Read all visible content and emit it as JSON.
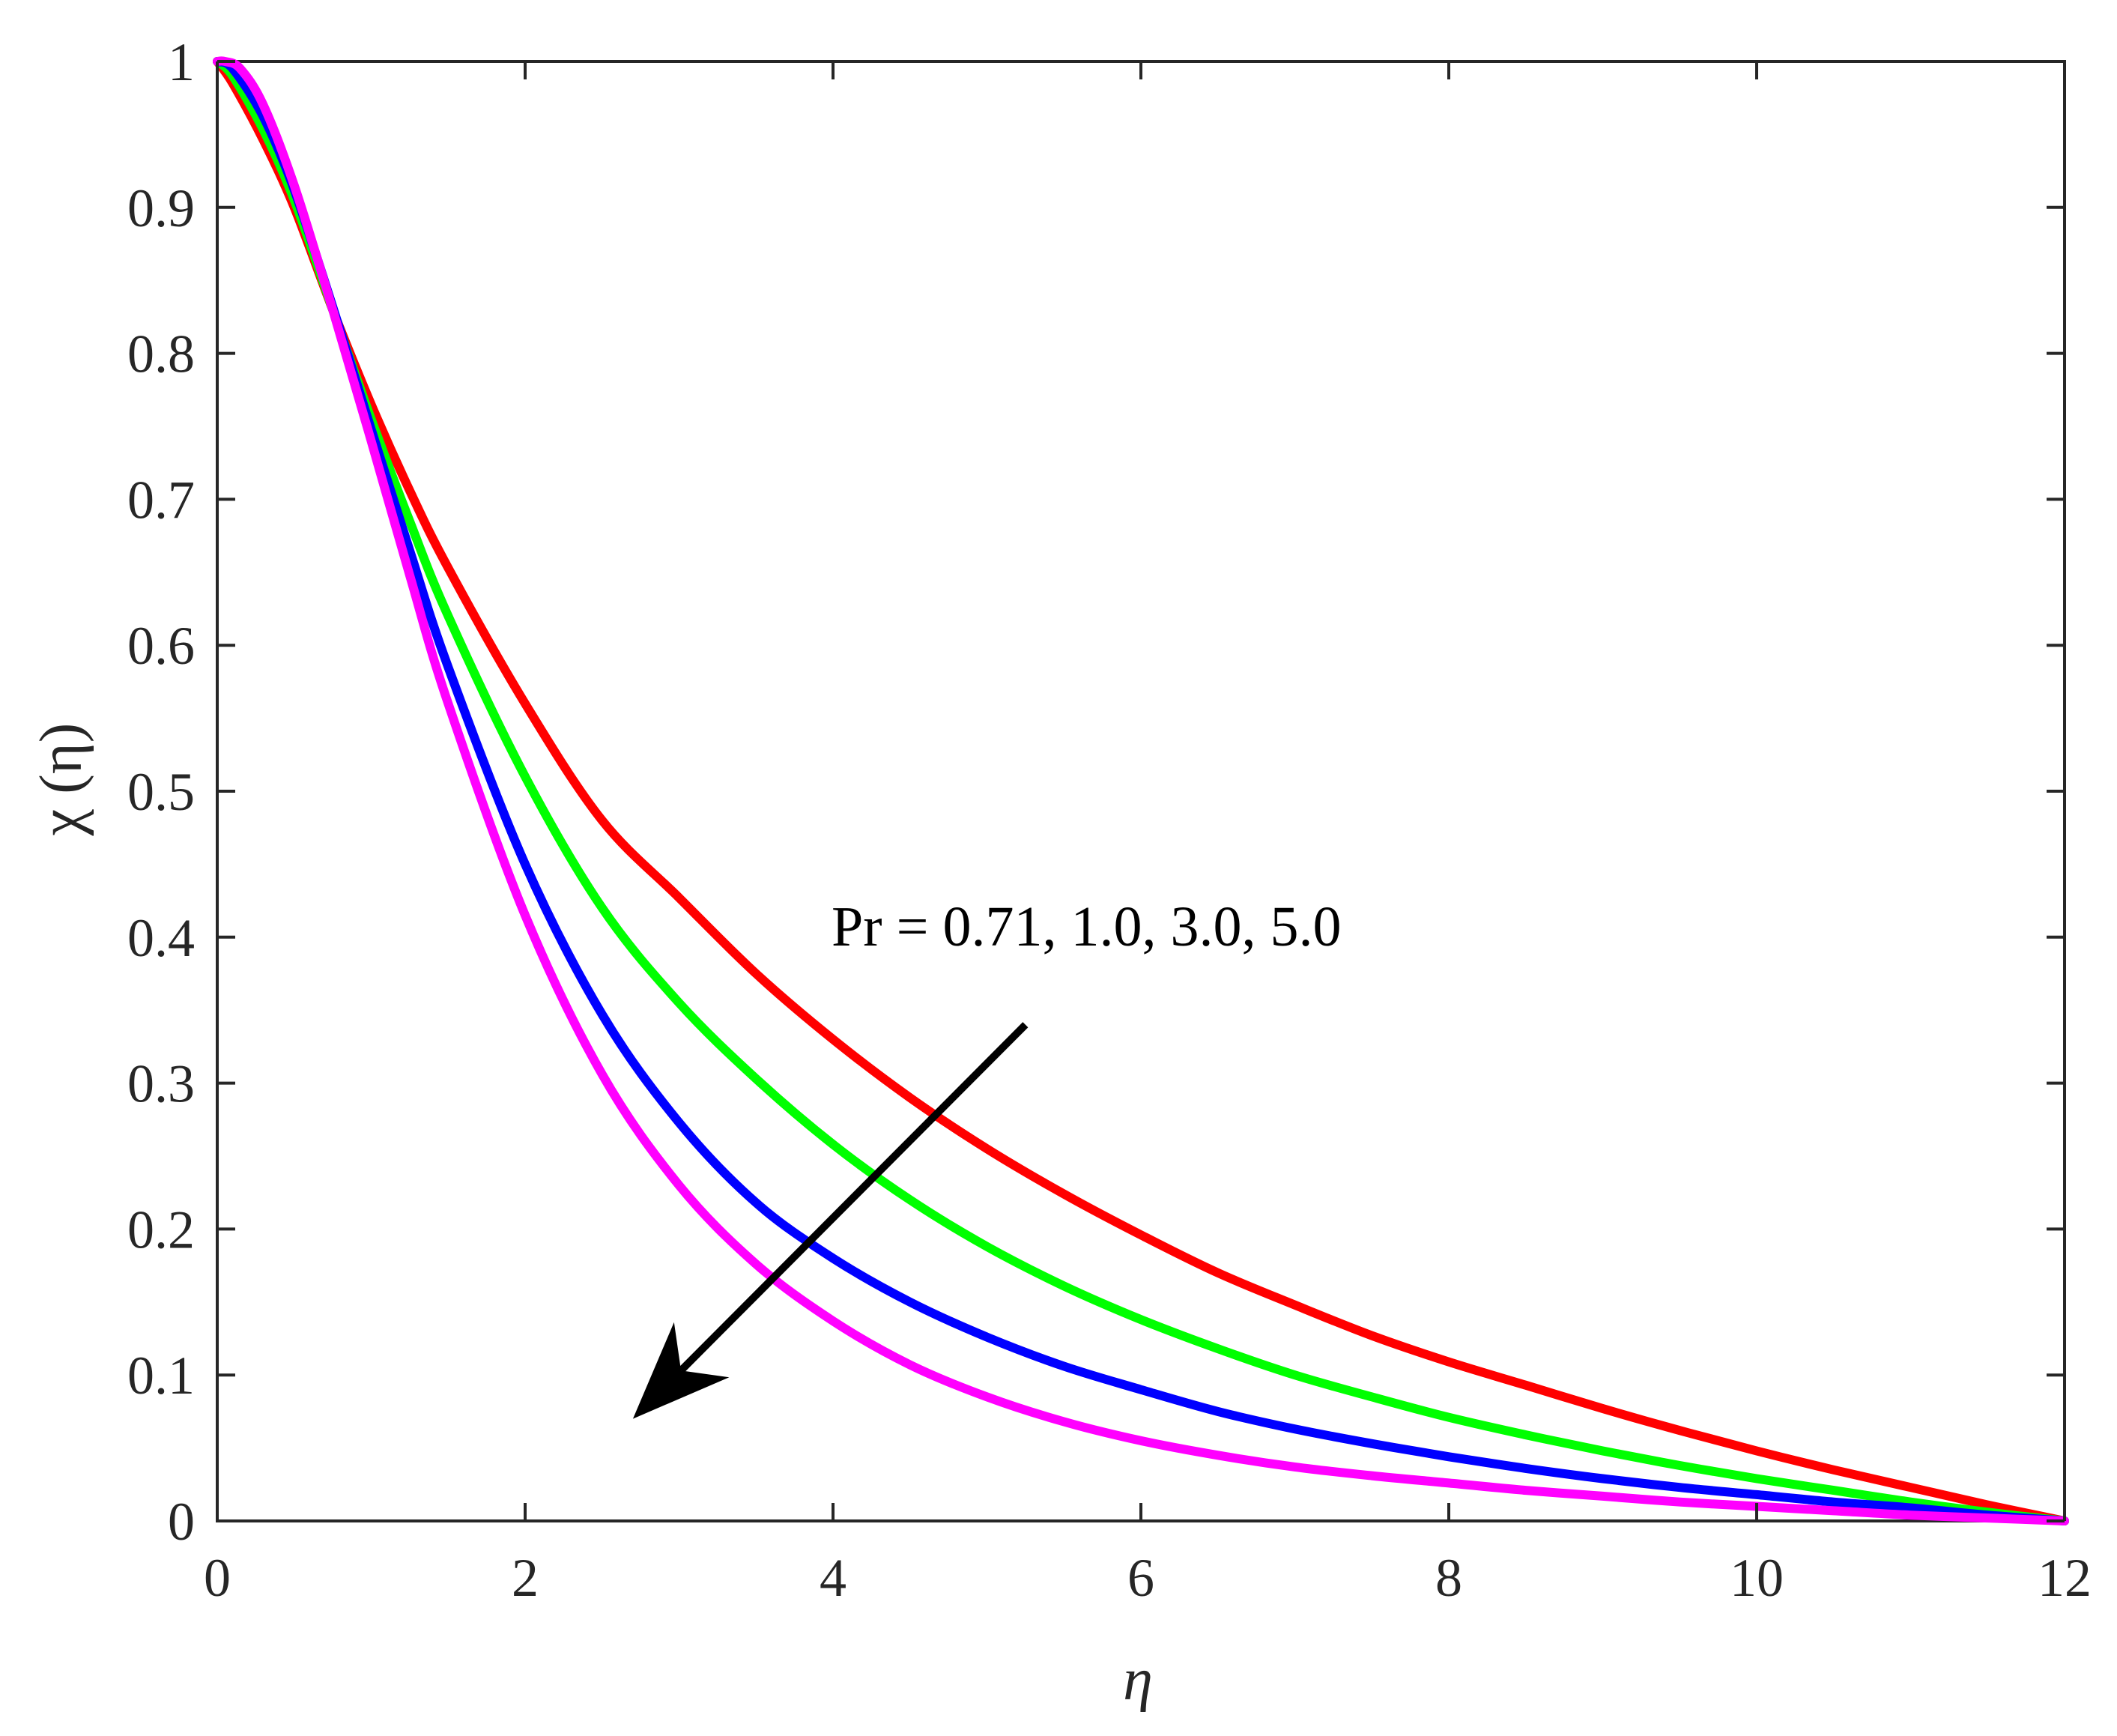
{
  "chart_data": {
    "type": "line",
    "title": "",
    "xlabel": "η",
    "ylabel": "χ (η)",
    "xlim": [
      0,
      12
    ],
    "ylim": [
      0,
      1
    ],
    "xticks": [
      0,
      2,
      4,
      6,
      8,
      10,
      12
    ],
    "yticks": [
      0,
      0.1,
      0.2,
      0.3,
      0.4,
      0.5,
      0.6,
      0.7,
      0.8,
      0.9,
      1
    ],
    "xtick_labels": [
      "0",
      "2",
      "4",
      "6",
      "8",
      "10",
      "12"
    ],
    "ytick_labels": [
      "0",
      "0.1",
      "0.2",
      "0.3",
      "0.4",
      "0.5",
      "0.6",
      "0.7",
      "0.8",
      "0.9",
      "1"
    ],
    "grid": false,
    "legend": "none",
    "annotation": {
      "text": "Pr = 0.71, 1.0, 3.0, 5.0",
      "arrow_from": [
        5.25,
        0.34
      ],
      "arrow_to": [
        2.7,
        0.07
      ],
      "arrow_color": "#000000"
    },
    "series": [
      {
        "color": "#ff0000",
        "x": [
          0,
          0.1,
          0.3,
          0.5,
          0.75,
          1,
          1.25,
          1.5,
          2,
          2.5,
          3,
          3.5,
          4,
          4.5,
          5,
          5.5,
          6,
          6.5,
          7,
          7.5,
          8,
          8.5,
          9,
          9.5,
          10,
          10.5,
          11,
          11.5,
          12
        ],
        "y": [
          1.0,
          0.985,
          0.946,
          0.9,
          0.83,
          0.765,
          0.706,
          0.653,
          0.56,
          0.48,
          0.427,
          0.375,
          0.33,
          0.29,
          0.255,
          0.224,
          0.196,
          0.17,
          0.148,
          0.127,
          0.109,
          0.093,
          0.077,
          0.062,
          0.048,
          0.035,
          0.023,
          0.011,
          0.0
        ]
      },
      {
        "color": "#00ff00",
        "x": [
          0,
          0.1,
          0.3,
          0.5,
          0.75,
          1,
          1.25,
          1.5,
          2,
          2.5,
          3,
          3.5,
          4,
          4.5,
          5,
          5.5,
          6,
          6.5,
          7,
          7.5,
          8,
          8.5,
          9,
          9.5,
          10,
          10.5,
          11,
          11.5,
          12
        ],
        "y": [
          1.0,
          0.99,
          0.953,
          0.905,
          0.83,
          0.755,
          0.685,
          0.62,
          0.51,
          0.42,
          0.355,
          0.303,
          0.258,
          0.22,
          0.188,
          0.161,
          0.138,
          0.118,
          0.1,
          0.085,
          0.071,
          0.059,
          0.048,
          0.038,
          0.029,
          0.021,
          0.013,
          0.006,
          0.0
        ]
      },
      {
        "color": "#0000ff",
        "x": [
          0,
          0.1,
          0.3,
          0.5,
          0.75,
          1,
          1.25,
          1.5,
          2,
          2.5,
          3,
          3.5,
          4,
          4.5,
          5,
          5.5,
          6,
          6.5,
          7,
          7.5,
          8,
          8.5,
          9,
          9.5,
          10,
          10.5,
          11,
          11.5,
          12
        ],
        "y": [
          1.0,
          0.995,
          0.962,
          0.912,
          0.832,
          0.748,
          0.665,
          0.585,
          0.45,
          0.347,
          0.273,
          0.218,
          0.18,
          0.15,
          0.126,
          0.106,
          0.09,
          0.075,
          0.063,
          0.053,
          0.044,
          0.036,
          0.029,
          0.023,
          0.018,
          0.013,
          0.009,
          0.004,
          0.0
        ]
      },
      {
        "color": "#ff00ff",
        "x": [
          0,
          0.05,
          0.15,
          0.3,
          0.5,
          0.75,
          1,
          1.25,
          1.5,
          2,
          2.5,
          3,
          3.5,
          4,
          4.5,
          5,
          5.5,
          6,
          6.5,
          7,
          7.5,
          8,
          8.5,
          9,
          9.5,
          10,
          10.5,
          11,
          11.5,
          12
        ],
        "y": [
          1.0,
          1.0,
          0.995,
          0.97,
          0.915,
          0.83,
          0.74,
          0.648,
          0.56,
          0.415,
          0.306,
          0.23,
          0.176,
          0.137,
          0.107,
          0.085,
          0.068,
          0.055,
          0.045,
          0.037,
          0.031,
          0.026,
          0.021,
          0.017,
          0.013,
          0.01,
          0.007,
          0.004,
          0.002,
          0.0
        ]
      }
    ]
  }
}
